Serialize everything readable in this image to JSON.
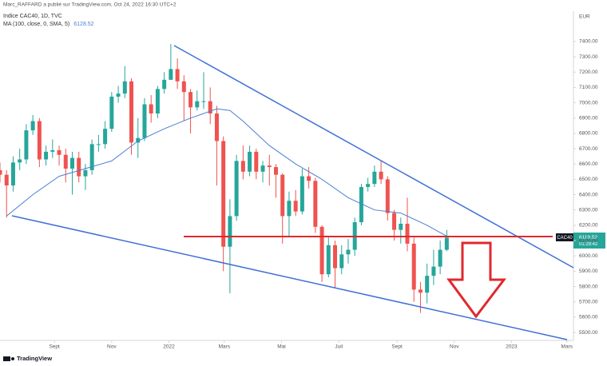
{
  "chart_data": {
    "type": "candlestick",
    "header": "Marc_RAFFARD a publié sur TradingView.com, Oct 24, 2022 16:30 UTC+2",
    "title": "Indice CAC40, 1D, TVC",
    "currency": "EUR",
    "brand": "TradingView",
    "x": [
      "2021-07-05",
      "2021-07-12",
      "2021-07-19",
      "2021-07-26",
      "2021-08-02",
      "2021-08-09",
      "2021-08-16",
      "2021-08-23",
      "2021-08-30",
      "2021-09-06",
      "2021-09-13",
      "2021-09-20",
      "2021-09-27",
      "2021-10-04",
      "2021-10-11",
      "2021-10-18",
      "2021-10-25",
      "2021-11-01",
      "2021-11-08",
      "2021-11-15",
      "2021-11-22",
      "2021-11-29",
      "2021-12-06",
      "2021-12-13",
      "2021-12-20",
      "2021-12-27",
      "2022-01-03",
      "2022-01-10",
      "2022-01-17",
      "2022-01-24",
      "2022-01-31",
      "2022-02-07",
      "2022-02-14",
      "2022-02-21",
      "2022-02-28",
      "2022-03-07",
      "2022-03-14",
      "2022-03-21",
      "2022-03-28",
      "2022-04-04",
      "2022-04-11",
      "2022-04-18",
      "2022-04-25",
      "2022-05-02",
      "2022-05-09",
      "2022-05-16",
      "2022-05-23",
      "2022-05-30",
      "2022-06-06",
      "2022-06-13",
      "2022-06-20",
      "2022-06-27",
      "2022-07-04",
      "2022-07-11",
      "2022-07-18",
      "2022-07-25",
      "2022-08-01",
      "2022-08-08",
      "2022-08-15",
      "2022-08-22",
      "2022-08-29",
      "2022-09-05",
      "2022-09-12",
      "2022-09-19",
      "2022-09-26",
      "2022-10-03",
      "2022-10-10",
      "2022-10-17",
      "2022-10-24"
    ],
    "series": [
      {
        "name": "CAC40",
        "up_color": "#26a69a",
        "down_color": "#ef5350",
        "open": [
          6560,
          6530,
          6460,
          6610,
          6630,
          6820,
          6880,
          6630,
          6680,
          6690,
          6660,
          6570,
          6640,
          6520,
          6560,
          6730,
          6730,
          6830,
          7040,
          7060,
          7140,
          6740,
          6770,
          6990,
          6930,
          7090,
          7150,
          7220,
          7140,
          7070,
          6970,
          7010,
          7010,
          6930,
          6750,
          6060,
          6260,
          6620,
          6550,
          6680,
          6550,
          6590,
          6580,
          6530,
          6260,
          6360,
          6290,
          6520,
          6490,
          6190,
          5880,
          6070,
          5920,
          6010,
          6040,
          6220,
          6450,
          6470,
          6550,
          6500,
          6280,
          6170,
          6210,
          6080,
          5780,
          5760,
          5870,
          5930,
          6040
        ],
        "high": [
          6610,
          6560,
          6650,
          6700,
          6860,
          6920,
          6900,
          6720,
          6760,
          6720,
          6700,
          6680,
          6680,
          6600,
          6760,
          6790,
          6880,
          7070,
          7110,
          7240,
          7160,
          6900,
          7030,
          7050,
          7110,
          7200,
          7384,
          7290,
          7180,
          7090,
          7080,
          7200,
          7100,
          6980,
          6780,
          6370,
          6660,
          6720,
          6720,
          6700,
          6620,
          6660,
          6600,
          6540,
          6420,
          6430,
          6570,
          6580,
          6510,
          6200,
          6120,
          6100,
          6070,
          6110,
          6250,
          6470,
          6510,
          6590,
          6620,
          6520,
          6300,
          6250,
          6380,
          6120,
          5830,
          5950,
          6040,
          6100,
          6170
        ],
        "low": [
          6480,
          6250,
          6420,
          6560,
          6600,
          6790,
          6580,
          6590,
          6640,
          6590,
          6480,
          6400,
          6480,
          6430,
          6530,
          6680,
          6700,
          6810,
          7000,
          7030,
          6660,
          6640,
          6750,
          6870,
          6900,
          7060,
          7150,
          7090,
          6880,
          6800,
          6950,
          6960,
          6860,
          6460,
          5900,
          5756,
          6230,
          6500,
          6520,
          6500,
          6480,
          6460,
          6380,
          6080,
          6120,
          6260,
          6270,
          6440,
          6150,
          5830,
          5860,
          5790,
          5880,
          5950,
          6000,
          6200,
          6420,
          6450,
          6470,
          6230,
          6100,
          6080,
          6030,
          5700,
          5628,
          5690,
          5810,
          5880,
          6030
        ],
        "close": [
          6530,
          6460,
          6610,
          6630,
          6820,
          6880,
          6630,
          6680,
          6690,
          6660,
          6570,
          6640,
          6520,
          6560,
          6730,
          6730,
          6830,
          7040,
          7060,
          7140,
          6740,
          6770,
          6990,
          6930,
          7090,
          7150,
          7220,
          7140,
          7070,
          6970,
          7010,
          7010,
          6930,
          6750,
          6060,
          6260,
          6620,
          6550,
          6680,
          6550,
          6590,
          6580,
          6530,
          6260,
          6360,
          6290,
          6520,
          6490,
          6190,
          5880,
          6070,
          5920,
          6010,
          6040,
          6220,
          6450,
          6470,
          6550,
          6500,
          6280,
          6170,
          6210,
          6080,
          5780,
          5760,
          5870,
          5930,
          6040,
          6119.52
        ],
        "countdown": "01:29:42"
      }
    ],
    "indicator": {
      "name": "MA (100, close, 0, SMA, 5)",
      "color": "#4a7fd4",
      "x": [
        "2021-07-12",
        "2021-08-09",
        "2021-09-06",
        "2021-10-04",
        "2021-11-01",
        "2021-11-29",
        "2021-12-27",
        "2022-01-24",
        "2022-02-21",
        "2022-03-07",
        "2022-03-21",
        "2022-04-18",
        "2022-05-16",
        "2022-06-13",
        "2022-07-11",
        "2022-08-08",
        "2022-09-05",
        "2022-10-03",
        "2022-10-24"
      ],
      "values": [
        6260,
        6400,
        6520,
        6570,
        6620,
        6750,
        6830,
        6900,
        6960,
        6950,
        6880,
        6720,
        6600,
        6500,
        6380,
        6300,
        6280,
        6200,
        6128.52
      ]
    },
    "xlim": [
      "2021-07-05",
      "2023-03-08"
    ],
    "xticks": [
      {
        "value": "2021-09-01",
        "label": "Sept"
      },
      {
        "value": "2021-11-01",
        "label": "Nov"
      },
      {
        "value": "2022-01-01",
        "label": "2022"
      },
      {
        "value": "2022-03-01",
        "label": "Mars"
      },
      {
        "value": "2022-05-01",
        "label": "Mai"
      },
      {
        "value": "2022-07-01",
        "label": "Juil"
      },
      {
        "value": "2022-09-01",
        "label": "Sept"
      },
      {
        "value": "2022-11-01",
        "label": "Nov"
      },
      {
        "value": "2023-01-01",
        "label": "2023"
      },
      {
        "value": "2023-03-01",
        "label": "Mars"
      }
    ],
    "ylim": [
      5448,
      7598
    ],
    "yticks": [
      {
        "value": 5500,
        "label": "5500.00"
      },
      {
        "value": 5600,
        "label": "5600.00"
      },
      {
        "value": 5700,
        "label": "5700.00"
      },
      {
        "value": 5800,
        "label": "5800.00"
      },
      {
        "value": 5900,
        "label": "5900.00"
      },
      {
        "value": 6000,
        "label": "6000.00"
      },
      {
        "value": 6100,
        "label": "6100.00"
      },
      {
        "value": 6200,
        "label": "6200.00"
      },
      {
        "value": 6300,
        "label": "6300.00"
      },
      {
        "value": 6400,
        "label": "6400.00"
      },
      {
        "value": 6500,
        "label": "6500.00"
      },
      {
        "value": 6600,
        "label": "6600.00"
      },
      {
        "value": 6700,
        "label": "6700.00"
      },
      {
        "value": 6800,
        "label": "6800.00"
      },
      {
        "value": 6900,
        "label": "6900.00"
      },
      {
        "value": 7000,
        "label": "7000.00"
      },
      {
        "value": 7100,
        "label": "7100.00"
      },
      {
        "value": 7200,
        "label": "7200.00"
      },
      {
        "value": 7300,
        "label": "7300.00"
      },
      {
        "value": 7400,
        "label": "7400.00"
      }
    ]
  }
}
